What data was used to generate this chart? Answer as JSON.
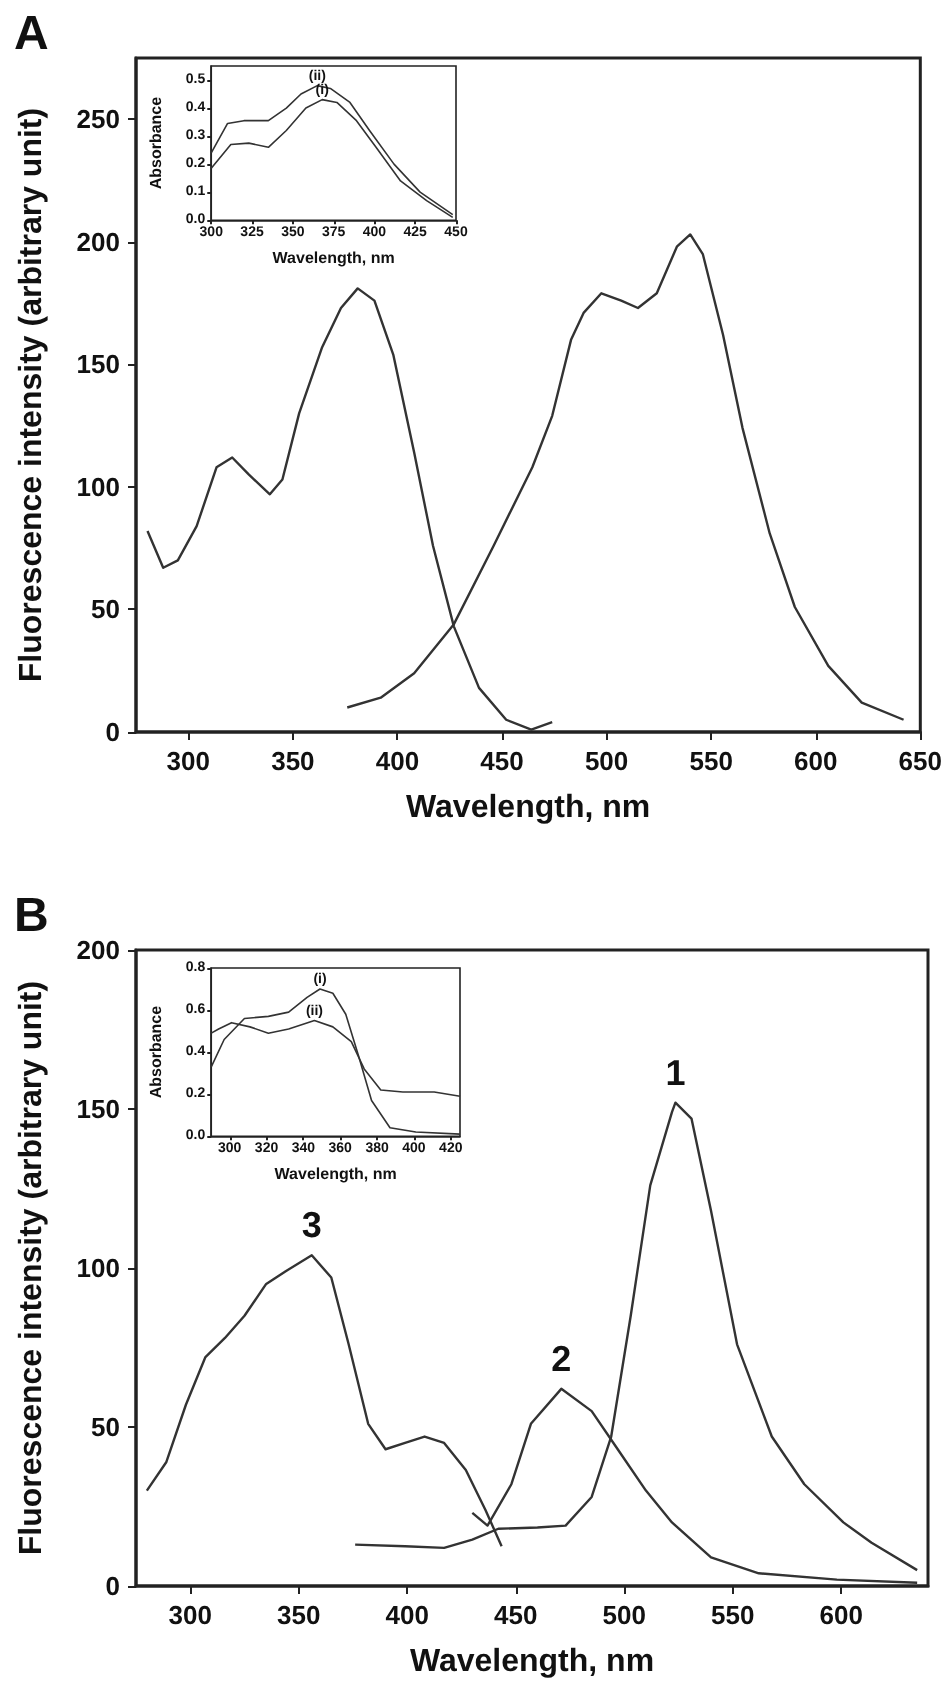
{
  "chart_data": [
    {
      "type": "line",
      "title": "A",
      "xlabel": "Wavelength, nm",
      "ylabel": "Fluorescence intensity (arbitrary unit)",
      "xlim": [
        275,
        650
      ],
      "ylim": [
        0,
        275
      ],
      "xticks": [
        300,
        350,
        400,
        450,
        500,
        550,
        600,
        650
      ],
      "yticks": [
        0,
        50,
        100,
        150,
        200,
        250
      ],
      "grid": false,
      "legend": false,
      "marker": "none",
      "line_style": "solid",
      "series": [
        {
          "color": "#333333",
          "x": [
            280.5,
            288,
            295,
            304,
            313.5,
            321,
            329,
            339,
            345,
            353,
            364,
            373,
            381,
            389,
            398,
            408,
            417,
            427,
            439,
            452,
            464,
            474
          ],
          "values": [
            82,
            67,
            70,
            84,
            108,
            112,
            105,
            97,
            103,
            130,
            157,
            173,
            181,
            176,
            154,
            114,
            76,
            43,
            18,
            5,
            1,
            4
          ]
        },
        {
          "color": "#333333",
          "x": [
            376,
            392,
            408,
            427,
            446,
            464.5,
            474,
            483,
            489,
            497.5,
            507,
            515,
            524,
            533.6,
            540,
            546,
            555.7,
            565,
            578,
            590,
            606,
            622,
            642
          ],
          "values": [
            10,
            14,
            24,
            44,
            76,
            108,
            129,
            160,
            171,
            179,
            176,
            173,
            179,
            198,
            203,
            195,
            162,
            124,
            81,
            51,
            27,
            12,
            5
          ]
        }
      ]
    },
    {
      "type": "line",
      "xlabel": "Wavelength, nm",
      "ylabel": "Absorbance",
      "xlim": [
        300,
        450
      ],
      "ylim": [
        0,
        0.55
      ],
      "xticks": [
        300,
        325,
        350,
        375,
        400,
        425,
        450
      ],
      "yticks": [
        {
          "value": 0,
          "label": "0.0"
        },
        {
          "value": 0.1,
          "label": "0.1"
        },
        {
          "value": 0.2,
          "label": "0.2"
        },
        {
          "value": 0.3,
          "label": "0.3"
        },
        {
          "value": 0.4,
          "label": "0.4"
        },
        {
          "value": 0.5,
          "label": "0.5"
        }
      ],
      "grid": false,
      "legend": false,
      "marker": "none",
      "line_style": "solid",
      "series": [
        {
          "name": "(ii)",
          "color": "#333333",
          "x": [
            300,
            310,
            320,
            335,
            346,
            355,
            365,
            373,
            385,
            397,
            412,
            428,
            448
          ],
          "values": [
            0.24,
            0.345,
            0.355,
            0.355,
            0.4,
            0.45,
            0.48,
            0.47,
            0.42,
            0.32,
            0.2,
            0.1,
            0.02
          ]
        },
        {
          "name": "(i)",
          "color": "#333333",
          "x": [
            300,
            312,
            323,
            335,
            346,
            358,
            368,
            377,
            389,
            401,
            416,
            432,
            448
          ],
          "values": [
            0.185,
            0.27,
            0.275,
            0.26,
            0.32,
            0.4,
            0.43,
            0.42,
            0.355,
            0.26,
            0.14,
            0.07,
            0.01
          ]
        }
      ]
    },
    {
      "type": "line",
      "title": "B",
      "xlabel": "Wavelength, nm",
      "ylabel": "Fluorescence intensity (arbitrary unit)",
      "xlim": [
        275,
        640
      ],
      "ylim": [
        0,
        200
      ],
      "xticks": [
        300,
        350,
        400,
        450,
        500,
        550,
        600
      ],
      "yticks": [
        0,
        50,
        100,
        150,
        200
      ],
      "grid": false,
      "legend": false,
      "marker": "none",
      "line_style": "solid",
      "series": [
        {
          "name": "1",
          "color": "#333333",
          "x": [
            376,
            399,
            417,
            430,
            442,
            460,
            473,
            485,
            494,
            503,
            512,
            522,
            523.6,
            531,
            540,
            552,
            568,
            583,
            601,
            614,
            635
          ],
          "values": [
            13,
            12.5,
            12,
            14.6,
            18,
            18.4,
            19,
            28,
            47,
            85,
            126,
            149,
            152,
            147,
            118,
            76,
            47,
            32,
            20,
            13.6,
            5
          ]
        },
        {
          "name": "2",
          "color": "#333333",
          "x": [
            430,
            437,
            448,
            457,
            471,
            485,
            497,
            510,
            522,
            540,
            562,
            598,
            635
          ],
          "values": [
            23,
            19,
            32,
            51,
            62,
            55,
            43,
            30,
            20,
            9,
            4,
            2,
            1
          ]
        },
        {
          "name": "3",
          "color": "#333333",
          "x": [
            280,
            289,
            298,
            307,
            316,
            325,
            335,
            344,
            356,
            365,
            373,
            382,
            390,
            399,
            408,
            417,
            427,
            436,
            443.5
          ],
          "values": [
            30,
            39,
            57,
            72,
            78,
            85,
            95,
            99,
            104,
            97,
            76,
            51,
            43,
            45,
            47,
            45,
            36.5,
            24,
            12.5
          ]
        }
      ]
    },
    {
      "type": "line",
      "xlabel": "Wavelength, nm",
      "ylabel": "Absorbance",
      "xlim": [
        290,
        425
      ],
      "ylim": [
        0,
        0.8
      ],
      "xticks": [
        300,
        320,
        340,
        360,
        380,
        400,
        420
      ],
      "yticks": [
        {
          "value": 0,
          "label": "0.0"
        },
        {
          "value": 0.2,
          "label": "0.2"
        },
        {
          "value": 0.4,
          "label": "0.4"
        },
        {
          "value": 0.6,
          "label": "0.6"
        },
        {
          "value": 0.8,
          "label": "0.8"
        }
      ],
      "grid": false,
      "legend": false,
      "marker": "none",
      "line_style": "solid",
      "series": [
        {
          "name": "(i)",
          "color": "#333333",
          "x": [
            290,
            297,
            308,
            321,
            332,
            342,
            349,
            356,
            363,
            370,
            377,
            387,
            401,
            425
          ],
          "values": [
            0.33,
            0.46,
            0.56,
            0.57,
            0.59,
            0.66,
            0.7,
            0.68,
            0.58,
            0.38,
            0.17,
            0.04,
            0.02,
            0.01
          ]
        },
        {
          "name": "(ii)",
          "color": "#333333",
          "x": [
            290,
            294,
            301,
            311,
            321,
            332,
            346,
            356,
            366,
            373,
            382,
            394,
            411,
            425
          ],
          "values": [
            0.49,
            0.51,
            0.54,
            0.52,
            0.49,
            0.51,
            0.55,
            0.52,
            0.45,
            0.32,
            0.22,
            0.21,
            0.21,
            0.19
          ]
        }
      ]
    }
  ]
}
